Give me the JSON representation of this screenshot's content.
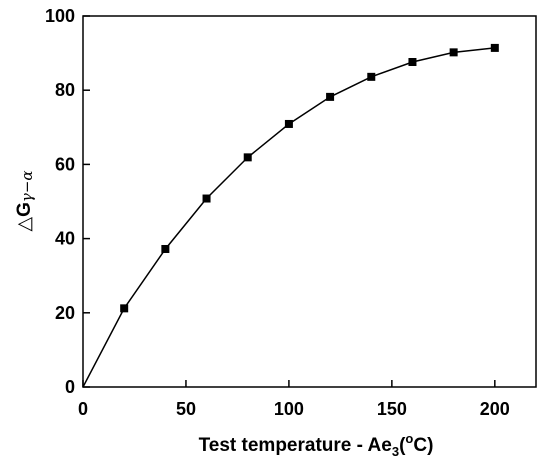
{
  "chart_data": {
    "type": "line",
    "title": "",
    "xlabel": {
      "main": "Test temperature - Ae",
      "sub": "3",
      "open": "(",
      "sup": "o",
      "unit": "C)"
    },
    "ylabel": {
      "delta": "△",
      "g": "G",
      "greek": "γ−α"
    },
    "xlim": [
      0,
      220
    ],
    "ylim": [
      0,
      100
    ],
    "xticks": [
      0,
      50,
      100,
      150,
      200
    ],
    "yticks": [
      0,
      20,
      40,
      60,
      80,
      100
    ],
    "grid": false,
    "legend": "none",
    "series": [
      {
        "color": "#000000",
        "marker": "square",
        "x": [
          20,
          40,
          60,
          80,
          100,
          120,
          140,
          160,
          180,
          200
        ],
        "y": [
          21.2,
          37.2,
          50.8,
          61.9,
          70.9,
          78.2,
          83.6,
          87.6,
          90.2,
          91.4
        ]
      }
    ],
    "curve_origin": [
      0,
      0
    ]
  }
}
